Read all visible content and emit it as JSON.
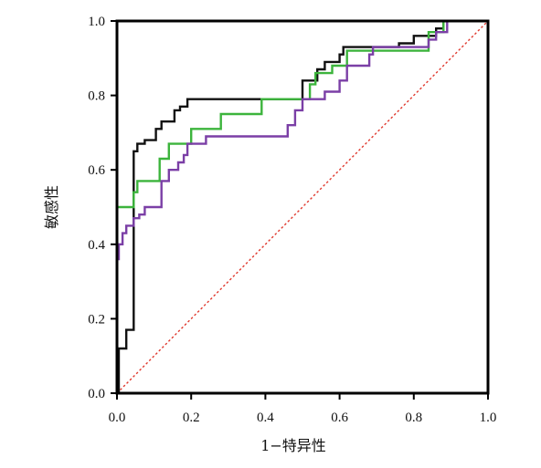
{
  "chart_data": {
    "type": "line",
    "title": "",
    "xlabel": "1−特异性",
    "ylabel": "敏感性",
    "xlim": [
      0,
      1
    ],
    "ylim": [
      0,
      1
    ],
    "xticks": [
      "0.0",
      "0.2",
      "0.4",
      "0.6",
      "0.8",
      "1.0"
    ],
    "yticks": [
      "0.0",
      "0.2",
      "0.4",
      "0.6",
      "0.8",
      "1.0"
    ],
    "grid": false,
    "legend": "none",
    "series": [
      {
        "color": "#111111",
        "step": true,
        "x": [
          0,
          0.005,
          0.005,
          0.025,
          0.025,
          0.045,
          0.045,
          0.055,
          0.055,
          0.075,
          0.075,
          0.105,
          0.105,
          0.12,
          0.12,
          0.155,
          0.155,
          0.17,
          0.17,
          0.19,
          0.19,
          0.5,
          0.5,
          0.54,
          0.54,
          0.56,
          0.56,
          0.6,
          0.6,
          0.61,
          0.61,
          0.64,
          0.64,
          0.76,
          0.76,
          0.8,
          0.8,
          0.86,
          0.86,
          0.88,
          0.88,
          1.0
        ],
        "y": [
          0,
          0,
          0.12,
          0.12,
          0.17,
          0.17,
          0.65,
          0.65,
          0.67,
          0.67,
          0.68,
          0.68,
          0.71,
          0.71,
          0.73,
          0.73,
          0.76,
          0.76,
          0.77,
          0.77,
          0.79,
          0.79,
          0.84,
          0.84,
          0.87,
          0.87,
          0.89,
          0.89,
          0.91,
          0.91,
          0.93,
          0.93,
          0.93,
          0.93,
          0.94,
          0.94,
          0.96,
          0.96,
          0.98,
          0.98,
          1.0,
          1.0
        ]
      },
      {
        "color": "#3cb43c",
        "step": true,
        "x": [
          0,
          0.0,
          0.0,
          0.045,
          0.045,
          0.055,
          0.055,
          0.115,
          0.115,
          0.14,
          0.14,
          0.2,
          0.2,
          0.28,
          0.28,
          0.39,
          0.39,
          0.52,
          0.52,
          0.535,
          0.535,
          0.58,
          0.58,
          0.62,
          0.62,
          0.84,
          0.84,
          0.88,
          0.88,
          1.0
        ],
        "y": [
          0,
          0,
          0.5,
          0.5,
          0.54,
          0.54,
          0.57,
          0.57,
          0.63,
          0.63,
          0.67,
          0.67,
          0.71,
          0.71,
          0.75,
          0.75,
          0.79,
          0.79,
          0.83,
          0.83,
          0.86,
          0.86,
          0.88,
          0.88,
          0.92,
          0.92,
          0.97,
          0.97,
          1.0,
          1.0
        ]
      },
      {
        "color": "#7b3fa6",
        "step": true,
        "x": [
          0,
          0.0,
          0.0,
          0.005,
          0.005,
          0.015,
          0.015,
          0.025,
          0.025,
          0.045,
          0.045,
          0.06,
          0.06,
          0.075,
          0.075,
          0.12,
          0.12,
          0.14,
          0.14,
          0.165,
          0.165,
          0.18,
          0.18,
          0.19,
          0.19,
          0.24,
          0.24,
          0.46,
          0.46,
          0.48,
          0.48,
          0.5,
          0.5,
          0.56,
          0.56,
          0.6,
          0.6,
          0.62,
          0.62,
          0.68,
          0.68,
          0.69,
          0.69,
          0.84,
          0.84,
          0.86,
          0.86,
          0.89,
          0.89,
          1.0
        ],
        "y": [
          0,
          0,
          0.36,
          0.36,
          0.4,
          0.4,
          0.43,
          0.43,
          0.45,
          0.45,
          0.47,
          0.47,
          0.48,
          0.48,
          0.5,
          0.5,
          0.57,
          0.57,
          0.6,
          0.6,
          0.62,
          0.62,
          0.64,
          0.64,
          0.67,
          0.67,
          0.69,
          0.69,
          0.72,
          0.72,
          0.76,
          0.76,
          0.79,
          0.79,
          0.81,
          0.81,
          0.84,
          0.84,
          0.88,
          0.88,
          0.91,
          0.91,
          0.93,
          0.93,
          0.95,
          0.95,
          0.97,
          0.97,
          1.0,
          1.0
        ]
      }
    ],
    "reference_line": {
      "color": "#e03a2f",
      "style": "dotted",
      "x": [
        0,
        1
      ],
      "y": [
        0,
        1
      ]
    }
  }
}
